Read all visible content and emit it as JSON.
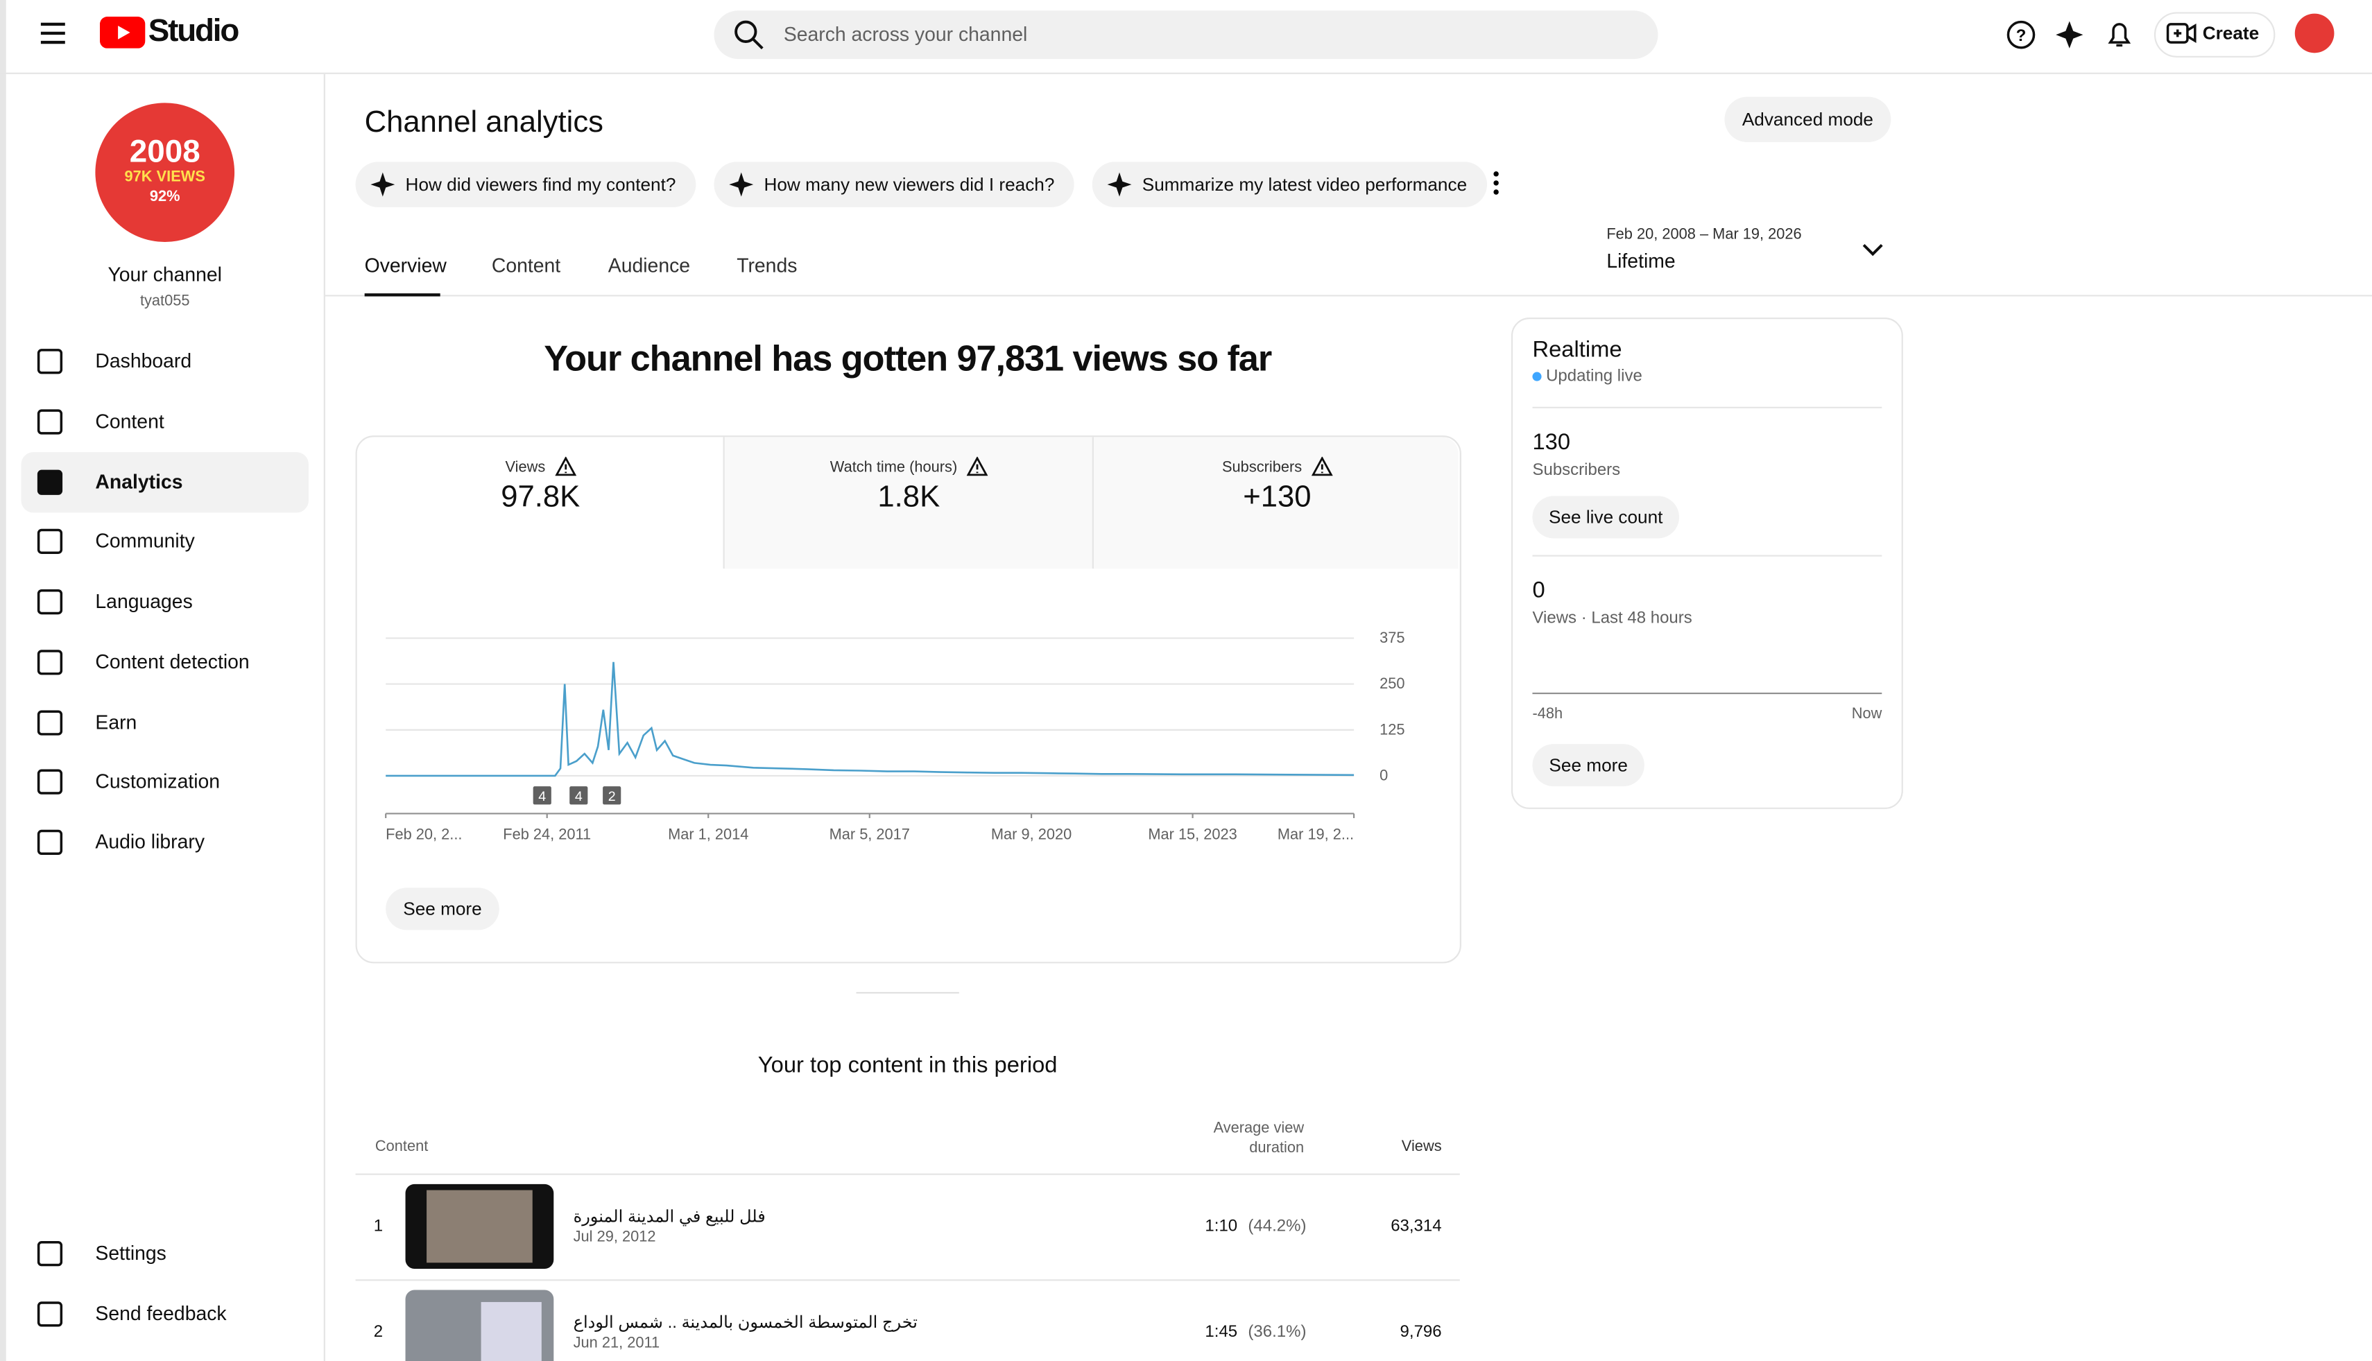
{
  "header": {
    "logo": "Studio",
    "search_placeholder": "Search across your channel",
    "create": "Create"
  },
  "sidebar": {
    "avatar": {
      "line1": "2008",
      "line2": "97K VIEWS",
      "line3": "92%"
    },
    "channel_title": "Your channel",
    "handle": "tyat055",
    "nav": [
      "Dashboard",
      "Content",
      "Analytics",
      "Community",
      "Languages",
      "Content detection",
      "Earn",
      "Customization",
      "Audio library"
    ],
    "bottom_nav": [
      "Settings",
      "Send feedback"
    ]
  },
  "page": {
    "title": "Channel analytics",
    "advanced": "Advanced mode",
    "prompts": [
      "How did viewers find my content?",
      "How many new viewers did I reach?",
      "Summarize my latest video performance"
    ],
    "tabs": [
      "Overview",
      "Content",
      "Audience",
      "Trends"
    ],
    "date_range": "Feb 20, 2008 – Mar 19, 2026",
    "period": "Lifetime"
  },
  "headline": "Your channel has gotten 97,831 views so far",
  "metrics": [
    {
      "label": "Views",
      "value": "97.8K"
    },
    {
      "label": "Watch time (hours)",
      "value": "1.8K"
    },
    {
      "label": "Subscribers",
      "value": "+130"
    }
  ],
  "chart_data": {
    "type": "line",
    "color": "#4a9fcb",
    "x": [
      2008.14,
      2009,
      2010,
      2011,
      2011.3,
      2011.4,
      2011.48,
      2011.55,
      2011.7,
      2011.85,
      2012.0,
      2012.1,
      2012.2,
      2012.3,
      2012.39,
      2012.5,
      2012.65,
      2012.8,
      2012.95,
      2013.1,
      2013.2,
      2013.35,
      2013.5,
      2013.7,
      2013.9,
      2014.2,
      2014.5,
      2015,
      2015.5,
      2016,
      2016.5,
      2017,
      2017.5,
      2018,
      2018.5,
      2019,
      2019.5,
      2020,
      2020.5,
      2021,
      2021.5,
      2022,
      2023,
      2024,
      2025,
      2026.21
    ],
    "values": [
      0,
      0,
      0,
      0,
      0,
      20,
      250,
      30,
      40,
      60,
      35,
      80,
      180,
      70,
      310,
      60,
      90,
      50,
      110,
      130,
      70,
      95,
      55,
      45,
      35,
      30,
      28,
      22,
      20,
      18,
      15,
      14,
      12,
      12,
      10,
      9,
      8,
      8,
      7,
      6,
      5,
      5,
      4,
      4,
      3,
      2
    ],
    "xlim": [
      2008.14,
      2026.21
    ],
    "xticks": [
      {
        "value": 2008.14,
        "label": "Feb 20, 2..."
      },
      {
        "value": 2011.15,
        "label": "Feb 24, 2011"
      },
      {
        "value": 2014.16,
        "label": "Mar 1, 2014"
      },
      {
        "value": 2017.17,
        "label": "Mar 5, 2017"
      },
      {
        "value": 2020.19,
        "label": "Mar 9, 2020"
      },
      {
        "value": 2023.2,
        "label": "Mar 15, 2023"
      },
      {
        "value": 2026.21,
        "label": "Mar 19, 2..."
      }
    ],
    "ylim": [
      0,
      375
    ],
    "yticks": [
      0,
      125,
      250,
      375
    ],
    "grid": true,
    "annotations": [
      {
        "x": 2011.06,
        "count": 4
      },
      {
        "x": 2011.74,
        "count": 4
      },
      {
        "x": 2012.36,
        "count": 2
      }
    ]
  },
  "see_more": "See more",
  "top_content": {
    "title": "Your top content in this period",
    "columns": [
      "Content",
      "Average view duration",
      "Views"
    ],
    "rows": [
      {
        "rank": 1,
        "title": "فلل للبيع في المدينة المنورة",
        "date": "Jul 29, 2012",
        "avg_duration": "1:10",
        "avg_percent": "(44.2%)",
        "views": "63,314"
      },
      {
        "rank": 2,
        "title": "تخرج المتوسطة الخمسون بالمدينة .. شمس الوداع",
        "date": "Jun 21, 2011",
        "avg_duration": "1:45",
        "avg_percent": "(36.1%)",
        "views": "9,796"
      }
    ]
  },
  "realtime": {
    "title": "Realtime",
    "status": "Updating live",
    "subs_value": "130",
    "subs_label": "Subscribers",
    "live_button": "See live count",
    "views_value": "0",
    "views_label": "Views · Last 48 hours",
    "axis_start": "-48h",
    "axis_end": "Now",
    "see_more": "See more"
  }
}
